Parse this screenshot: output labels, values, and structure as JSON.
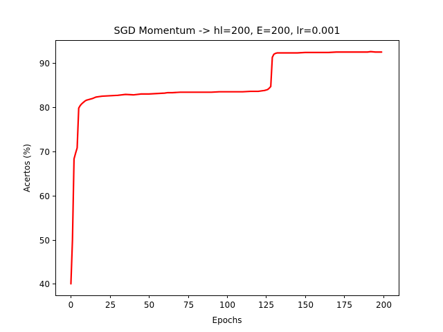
{
  "chart_data": {
    "type": "line",
    "title": "SGD Momentum -> hl=200, E=200, lr=0.001",
    "xlabel": "Epochs",
    "ylabel": "Acertos (%)",
    "xlim": [
      -9.95,
      209.95
    ],
    "ylim": [
      37.4,
      95.2
    ],
    "xticks": [
      0,
      25,
      50,
      75,
      100,
      125,
      150,
      175,
      200
    ],
    "yticks": [
      40,
      50,
      60,
      70,
      80,
      90
    ],
    "grid": false,
    "legend": "none",
    "series": [
      {
        "color": "#ff0000",
        "x": [
          0,
          1,
          2,
          3,
          4,
          5,
          6,
          7,
          8,
          9,
          10,
          12,
          14,
          16,
          18,
          20,
          25,
          30,
          35,
          40,
          45,
          50,
          55,
          60,
          62,
          65,
          70,
          75,
          80,
          85,
          90,
          95,
          100,
          105,
          110,
          115,
          120,
          124,
          126,
          127,
          128,
          129,
          130,
          131,
          132,
          133,
          135,
          140,
          145,
          150,
          155,
          160,
          165,
          170,
          175,
          180,
          185,
          190,
          192,
          195,
          199
        ],
        "y": [
          40.0,
          50.0,
          68.3,
          69.6,
          70.8,
          79.8,
          80.4,
          80.8,
          81.1,
          81.4,
          81.6,
          81.8,
          82.0,
          82.3,
          82.4,
          82.5,
          82.6,
          82.7,
          82.9,
          82.8,
          83.0,
          83.0,
          83.1,
          83.2,
          83.3,
          83.3,
          83.4,
          83.4,
          83.4,
          83.4,
          83.4,
          83.5,
          83.5,
          83.5,
          83.5,
          83.6,
          83.6,
          83.8,
          84.0,
          84.3,
          84.7,
          91.3,
          92.0,
          92.2,
          92.3,
          92.3,
          92.3,
          92.3,
          92.3,
          92.4,
          92.4,
          92.4,
          92.4,
          92.5,
          92.5,
          92.5,
          92.5,
          92.5,
          92.6,
          92.5,
          92.5
        ]
      }
    ]
  }
}
